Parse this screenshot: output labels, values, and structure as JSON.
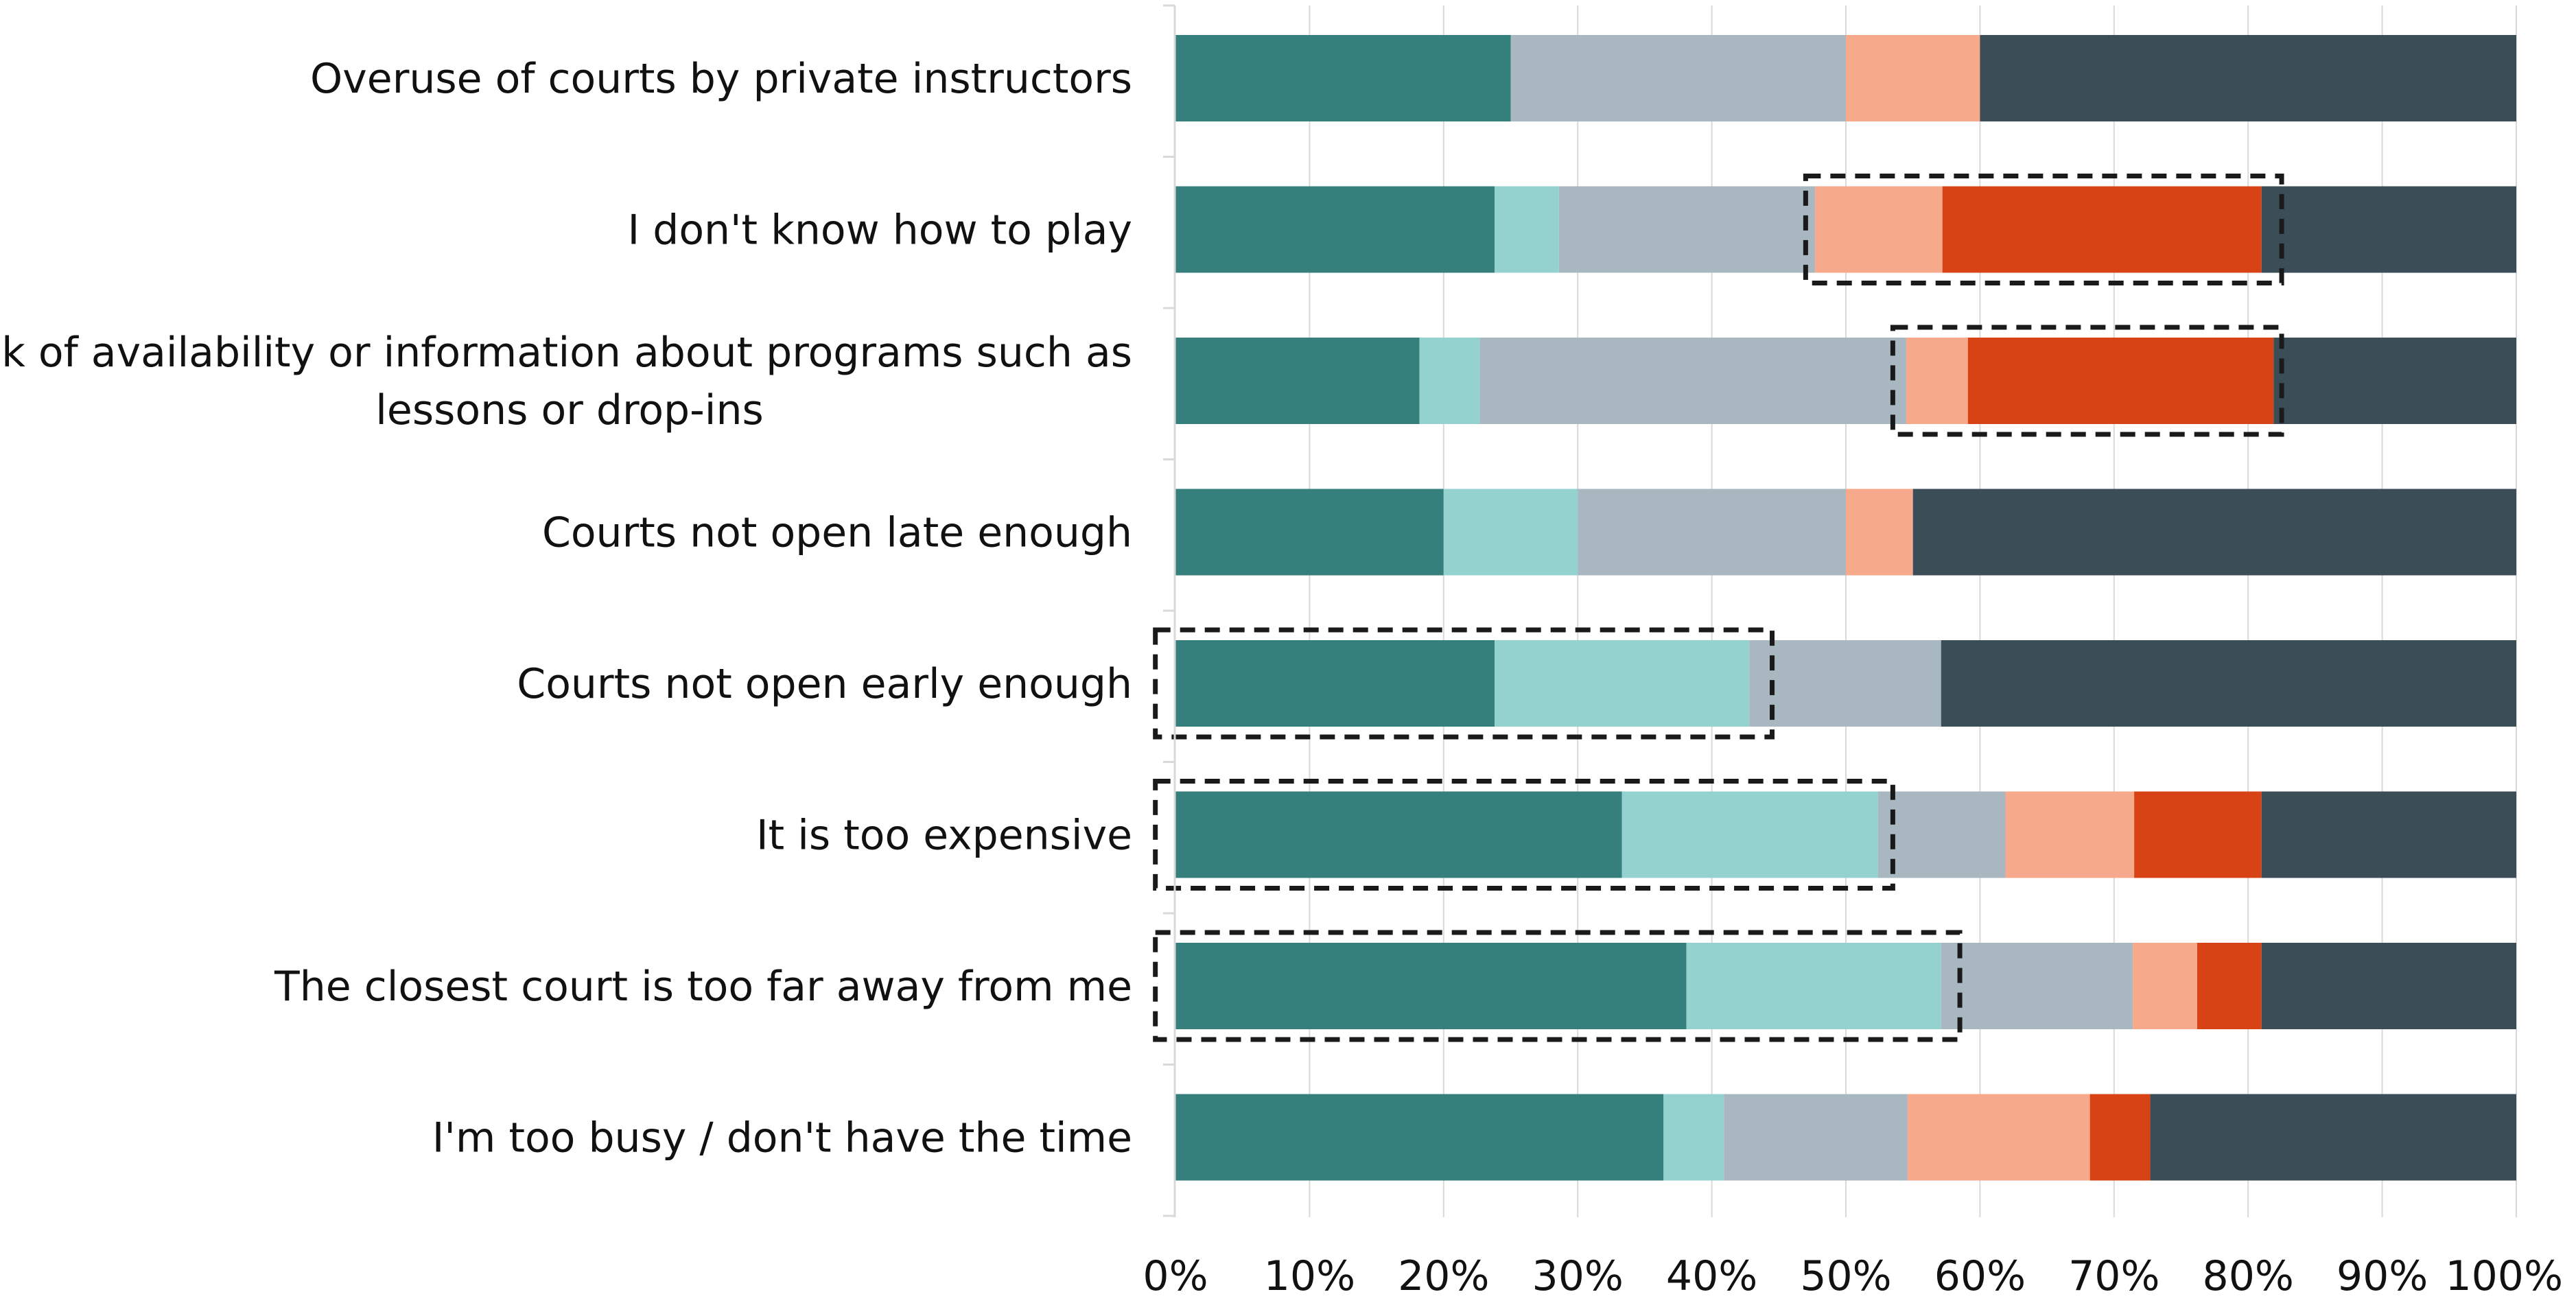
{
  "chart_data": {
    "type": "bar",
    "orientation": "horizontal",
    "stacked": true,
    "title": "",
    "xlabel": "",
    "ylabel": "",
    "xlim": [
      0,
      100
    ],
    "x_ticks": [
      "0%",
      "10%",
      "20%",
      "30%",
      "40%",
      "50%",
      "60%",
      "70%",
      "80%",
      "90%",
      "100%"
    ],
    "grid": "vertical",
    "legend": "none",
    "categories": [
      [
        "Overuse of courts by private instructors"
      ],
      [
        "I don't know how to play"
      ],
      [
        "Lack of availability or information about programs such as",
        "lessons or drop-ins"
      ],
      [
        "Courts not open late enough"
      ],
      [
        "Courts not open early enough"
      ],
      [
        "It is too expensive"
      ],
      [
        "The closest court is too far away from me"
      ],
      [
        "I'm too busy / don't have the time"
      ]
    ],
    "series_colors": [
      "#357f7c",
      "#93d2cf",
      "#a9b8c0",
      "#f7a98b",
      "#d84315",
      "#3b4e57"
    ],
    "series": [
      {
        "values": [
          25,
          23.8,
          18.2,
          20,
          23.8,
          33.3,
          38.1,
          36.4
        ]
      },
      {
        "values": [
          0,
          4.8,
          4.5,
          10,
          19,
          19.1,
          19,
          4.5
        ]
      },
      {
        "values": [
          25,
          19.1,
          31.8,
          20,
          14.3,
          9.5,
          14.3,
          13.7
        ]
      },
      {
        "values": [
          10,
          9.5,
          4.6,
          5,
          0,
          9.6,
          4.8,
          13.6
        ]
      },
      {
        "values": [
          0,
          23.8,
          22.8,
          0,
          0,
          9.5,
          4.8,
          4.5
        ]
      },
      {
        "values": [
          40,
          19,
          18.1,
          45,
          42.9,
          19,
          19,
          27.3
        ]
      }
    ],
    "highlight_boxes": [
      {
        "category_index": 1,
        "from": 47,
        "to": 82.5
      },
      {
        "category_index": 2,
        "from": 53.5,
        "to": 82.5
      },
      {
        "category_index": 4,
        "from": -1.5,
        "to": 44.5
      },
      {
        "category_index": 5,
        "from": -1.5,
        "to": 53.5
      },
      {
        "category_index": 6,
        "from": -1.5,
        "to": 58.5
      }
    ]
  }
}
